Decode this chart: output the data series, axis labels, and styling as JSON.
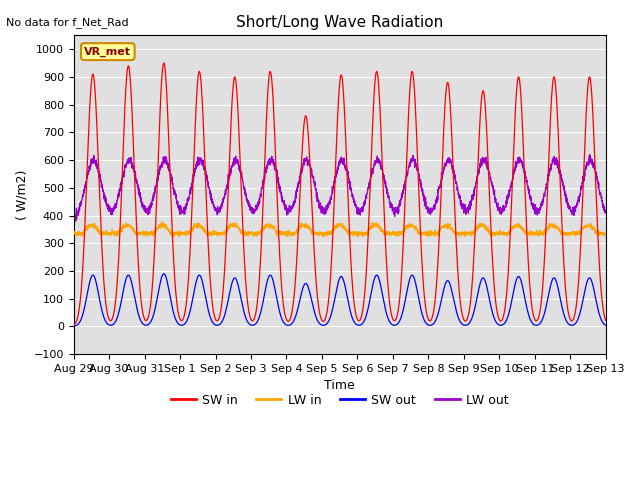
{
  "title": "Short/Long Wave Radiation",
  "xlabel": "Time",
  "ylabel": "( W/m2)",
  "ylim": [
    -100,
    1050
  ],
  "xlim": [
    0,
    360
  ],
  "annotation": "No data for f_Net_Rad",
  "legend_label": "VR_met",
  "x_tick_labels": [
    "Aug 29",
    "Aug 30",
    "Aug 31",
    "Sep 1",
    "Sep 2",
    "Sep 3",
    "Sep 4",
    "Sep 5",
    "Sep 6",
    "Sep 7",
    "Sep 8",
    "Sep 9",
    "Sep 10",
    "Sep 11",
    "Sep 12",
    "Sep 13"
  ],
  "colors": {
    "SW_in": "#ff0000",
    "LW_in": "#ffa500",
    "SW_out": "#0000ff",
    "LW_out": "#9900cc"
  },
  "axes_bg": "#e0e0e0",
  "SW_in_peaks": [
    910,
    940,
    950,
    920,
    900,
    920,
    760,
    907,
    920,
    920,
    880,
    850,
    900,
    900,
    900
  ],
  "SW_out_peaks": [
    185,
    185,
    190,
    185,
    175,
    185,
    155,
    180,
    185,
    185,
    165,
    175,
    180,
    175,
    175
  ],
  "LW_in_base": 335,
  "LW_out_base": 375,
  "LW_out_peak": 600,
  "total_hours": 360,
  "num_days": 15
}
